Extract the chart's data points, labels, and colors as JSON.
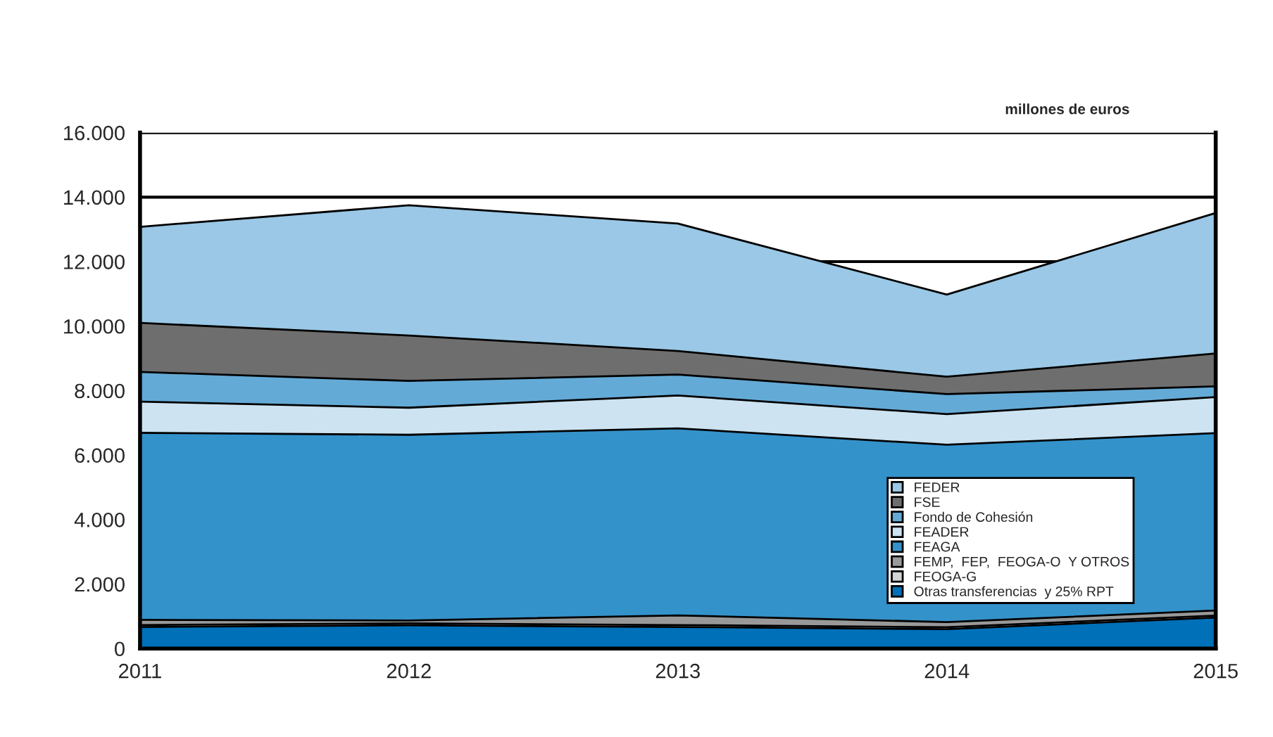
{
  "chart_data": {
    "type": "area",
    "stacked": true,
    "x": [
      2011,
      2012,
      2013,
      2014,
      2015
    ],
    "series": [
      {
        "name": "Otras transferencias  y 25% RPT",
        "color": "#0070b8",
        "values": [
          670,
          720,
          670,
          600,
          960
        ]
      },
      {
        "name": "FEOGA-G",
        "color": "#d4d4d4",
        "values": [
          60,
          60,
          60,
          60,
          60
        ]
      },
      {
        "name": "FEMP,  FEP,  FEOGA-O  Y OTROS",
        "color": "#999999",
        "values": [
          160,
          90,
          300,
          160,
          160
        ]
      },
      {
        "name": "FEAGA",
        "color": "#3492ca",
        "values": [
          5800,
          5760,
          5800,
          5500,
          5500
        ]
      },
      {
        "name": "FEADER",
        "color": "#cde3f1",
        "values": [
          970,
          840,
          1020,
          950,
          1120
        ]
      },
      {
        "name": "Fondo de Cohesión",
        "color": "#64aad6",
        "values": [
          920,
          830,
          650,
          620,
          330
        ]
      },
      {
        "name": "FSE",
        "color": "#6e6e6e",
        "values": [
          1520,
          1410,
          730,
          540,
          1020
        ]
      },
      {
        "name": "FEDER",
        "color": "#9ac8e6",
        "values": [
          2980,
          4040,
          3950,
          2550,
          4360
        ]
      }
    ],
    "xlim": [
      2011,
      2015
    ],
    "xticks": [
      2011,
      2012,
      2013,
      2014,
      2015
    ],
    "ylim": [
      0,
      16000
    ],
    "yticks": [
      {
        "value": 0,
        "label": "0"
      },
      {
        "value": 2000,
        "label": "2.000"
      },
      {
        "value": 4000,
        "label": "4.000"
      },
      {
        "value": 6000,
        "label": "6.000"
      },
      {
        "value": 8000,
        "label": "8.000"
      },
      {
        "value": 10000,
        "label": "10.000"
      },
      {
        "value": 12000,
        "label": "12.000"
      },
      {
        "value": 14000,
        "label": "14.000"
      },
      {
        "value": 16000,
        "label": "16.000"
      }
    ],
    "grid": "y",
    "legend": "bottom right",
    "annotations": [
      "millones de euros"
    ]
  }
}
